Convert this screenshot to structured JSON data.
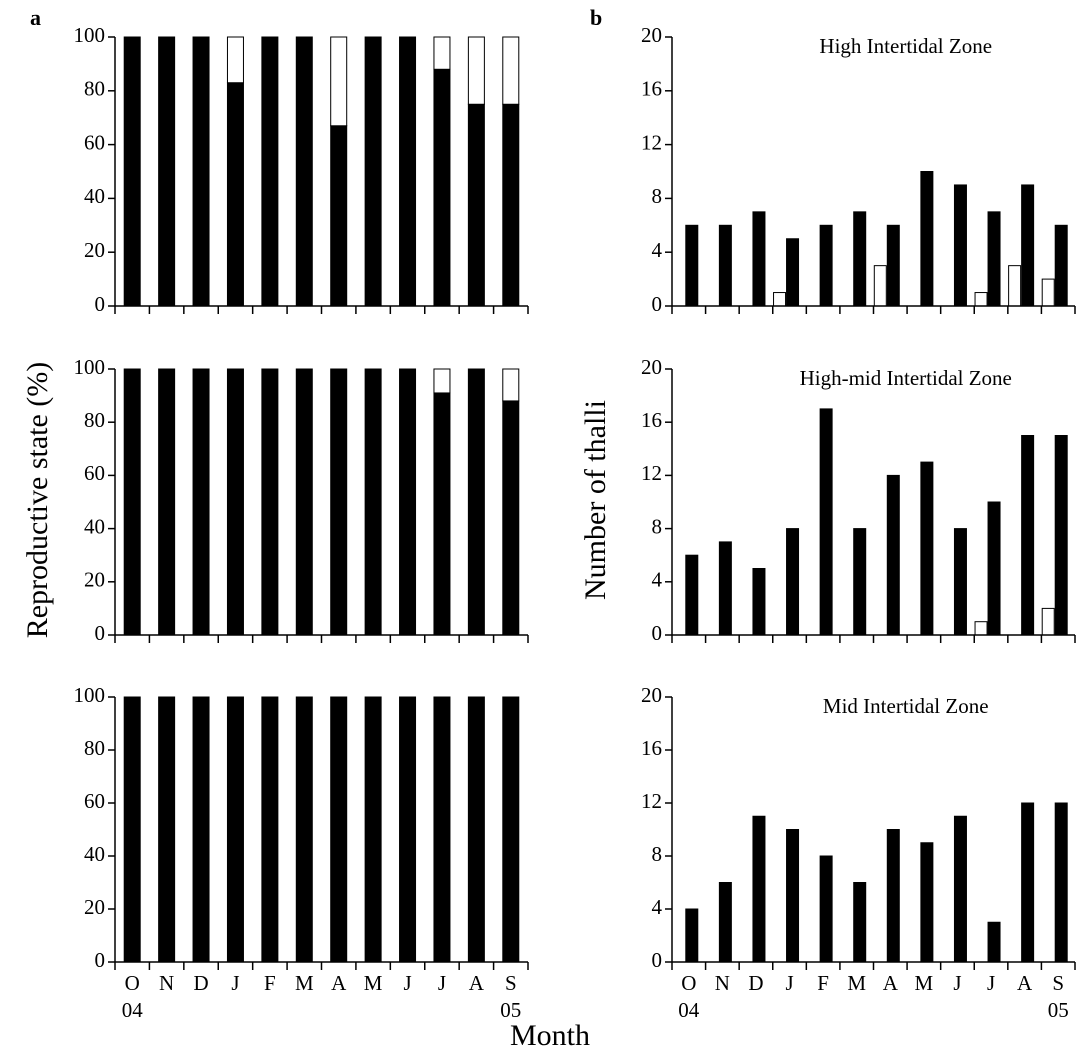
{
  "figure": {
    "panel_labels": [
      "a",
      "b"
    ],
    "ylabel_left": "Reproductive state  (%)",
    "ylabel_right": "Number of thalli",
    "xlabel": "Month"
  },
  "chart_data": [
    {
      "type": "bar",
      "stacked": true,
      "ylim": [
        0,
        100
      ],
      "yticks": [
        0,
        20,
        40,
        60,
        80,
        100
      ],
      "series": [
        {
          "color": "#000000",
          "values": [
            100,
            100,
            100,
            83,
            100,
            100,
            67,
            100,
            100,
            88,
            75,
            75
          ]
        },
        {
          "color": "#ffffff",
          "values": [
            0,
            0,
            0,
            17,
            0,
            0,
            33,
            0,
            0,
            12,
            25,
            25
          ]
        }
      ]
    },
    {
      "type": "bar",
      "stacked": true,
      "ylim": [
        0,
        100
      ],
      "yticks": [
        0,
        20,
        40,
        60,
        80,
        100
      ],
      "series": [
        {
          "color": "#000000",
          "values": [
            100,
            100,
            100,
            100,
            100,
            100,
            100,
            100,
            100,
            91,
            100,
            88
          ]
        },
        {
          "color": "#ffffff",
          "values": [
            0,
            0,
            0,
            0,
            0,
            0,
            0,
            0,
            0,
            9,
            0,
            12
          ]
        }
      ]
    },
    {
      "type": "bar",
      "stacked": true,
      "ylim": [
        0,
        100
      ],
      "yticks": [
        0,
        20,
        40,
        60,
        80,
        100
      ],
      "categories": [
        "O",
        "N",
        "D",
        "J",
        "F",
        "M",
        "A",
        "M",
        "J",
        "J",
        "A",
        "S"
      ],
      "year_labels": [
        "04",
        null,
        null,
        null,
        null,
        null,
        null,
        null,
        null,
        null,
        null,
        "05"
      ],
      "series": [
        {
          "color": "#000000",
          "values": [
            100,
            100,
            100,
            100,
            100,
            100,
            100,
            100,
            100,
            100,
            100,
            100
          ]
        },
        {
          "color": "#ffffff",
          "values": [
            0,
            0,
            0,
            0,
            0,
            0,
            0,
            0,
            0,
            0,
            0,
            0
          ]
        }
      ]
    },
    {
      "type": "bar",
      "stacked": false,
      "title": "High Intertidal Zone",
      "ylim": [
        0,
        20
      ],
      "yticks": [
        0,
        4,
        8,
        12,
        16,
        20
      ],
      "series": [
        {
          "color": "#000000",
          "values": [
            6,
            6,
            7,
            5,
            6,
            7,
            6,
            10,
            9,
            7,
            9,
            6
          ]
        },
        {
          "color": "#ffffff",
          "values": [
            0,
            0,
            0,
            1,
            0,
            0,
            3,
            0,
            0,
            1,
            3,
            2
          ]
        }
      ]
    },
    {
      "type": "bar",
      "stacked": false,
      "title": "High-mid Intertidal Zone",
      "ylim": [
        0,
        20
      ],
      "yticks": [
        0,
        4,
        8,
        12,
        16,
        20
      ],
      "series": [
        {
          "color": "#000000",
          "values": [
            6,
            7,
            5,
            8,
            17,
            8,
            12,
            13,
            8,
            10,
            15,
            15
          ]
        },
        {
          "color": "#ffffff",
          "values": [
            0,
            0,
            0,
            0,
            0,
            0,
            0,
            0,
            0,
            1,
            0,
            2
          ]
        }
      ]
    },
    {
      "type": "bar",
      "stacked": false,
      "title": "Mid Intertidal Zone",
      "ylim": [
        0,
        20
      ],
      "yticks": [
        0,
        4,
        8,
        12,
        16,
        20
      ],
      "categories": [
        "O",
        "N",
        "D",
        "J",
        "F",
        "M",
        "A",
        "M",
        "J",
        "J",
        "A",
        "S"
      ],
      "year_labels": [
        "04",
        null,
        null,
        null,
        null,
        null,
        null,
        null,
        null,
        null,
        null,
        "05"
      ],
      "series": [
        {
          "color": "#000000",
          "values": [
            4,
            6,
            11,
            10,
            8,
            6,
            10,
            9,
            11,
            3,
            12,
            12
          ]
        },
        {
          "color": "#ffffff",
          "values": [
            0,
            0,
            0,
            0,
            0,
            0,
            0,
            0,
            0,
            0,
            0,
            0
          ]
        }
      ]
    }
  ]
}
